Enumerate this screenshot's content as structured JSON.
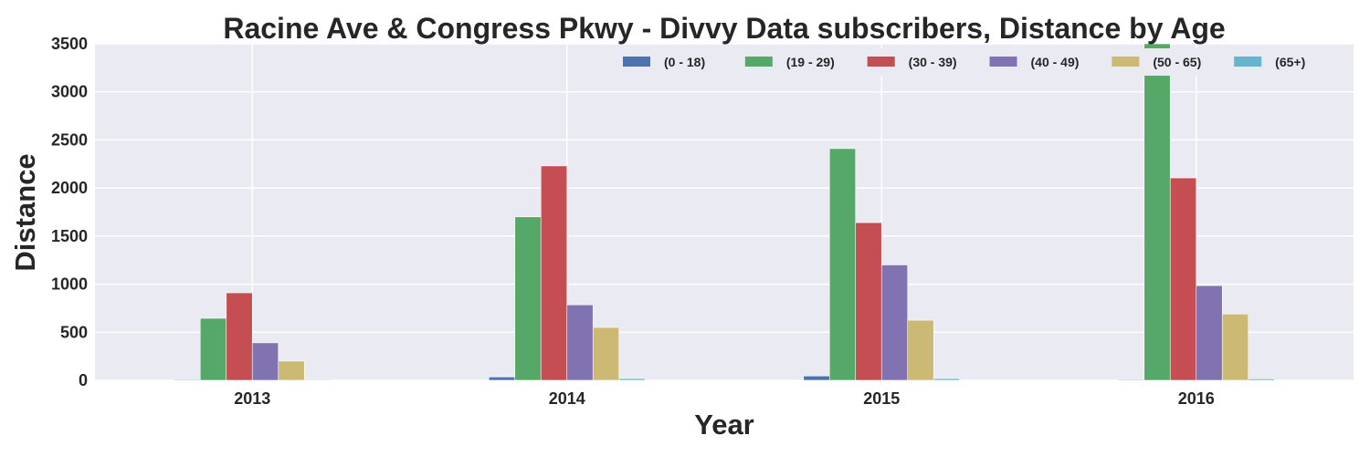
{
  "chart_data": {
    "type": "bar",
    "title": "Racine Ave & Congress Pkwy - Divvy Data subscribers, Distance by Age",
    "xlabel": "Year",
    "ylabel": "Distance",
    "categories": [
      "2013",
      "2014",
      "2015",
      "2016"
    ],
    "ylim": [
      0,
      3500
    ],
    "yticks": [
      0,
      500,
      1000,
      1500,
      2000,
      2500,
      3000,
      3500
    ],
    "grid": true,
    "legend_position": "top-right",
    "series": [
      {
        "name": "(0 - 18)",
        "color": "#4c72b0",
        "values": [
          8,
          35,
          45,
          8
        ]
      },
      {
        "name": "(19 - 29)",
        "color": "#55a868",
        "values": [
          645,
          1700,
          2410,
          3500
        ]
      },
      {
        "name": "(30 - 39)",
        "color": "#c44e52",
        "values": [
          910,
          2230,
          1640,
          2105
        ]
      },
      {
        "name": "(40 - 49)",
        "color": "#8172b2",
        "values": [
          390,
          785,
          1200,
          985
        ]
      },
      {
        "name": "(50 - 65)",
        "color": "#ccb974",
        "values": [
          200,
          550,
          625,
          690
        ]
      },
      {
        "name": "(65+)",
        "color": "#64b5cd",
        "values": [
          8,
          18,
          18,
          15
        ]
      }
    ]
  }
}
